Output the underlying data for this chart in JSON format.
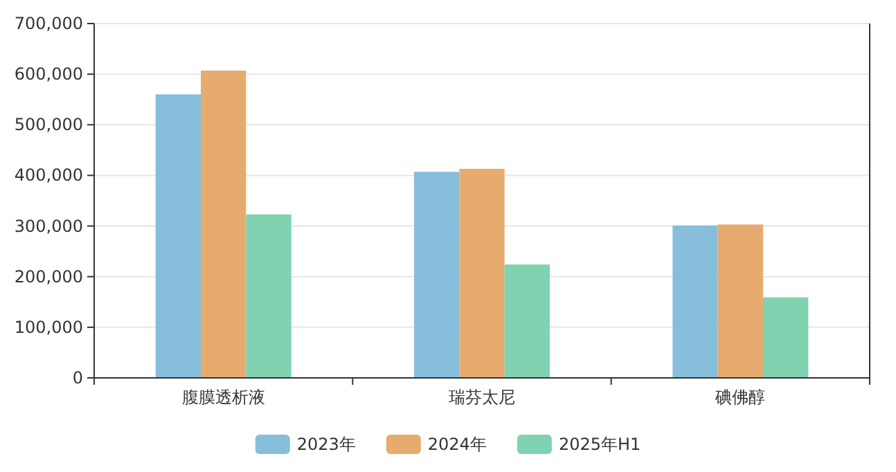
{
  "chart_data": {
    "type": "bar",
    "categories": [
      "腹膜透析液",
      "瑞芬太尼",
      "碘佛醇"
    ],
    "series": [
      {
        "name": "2023年",
        "color": "#86bedb",
        "values": [
          560000,
          407000,
          301000
        ]
      },
      {
        "name": "2024年",
        "color": "#e8ab6f",
        "values": [
          607000,
          413000,
          303000
        ]
      },
      {
        "name": "2025年H1",
        "color": "#80d3b1",
        "values": [
          323000,
          224000,
          159000
        ]
      }
    ],
    "ylim": [
      0,
      700000
    ],
    "yticks": [
      0,
      {
        "value": 100000,
        "label": "100,000"
      },
      {
        "value": 200000,
        "label": "200,000"
      },
      {
        "value": 300000,
        "label": "300,000"
      },
      {
        "value": 400000,
        "label": "400,000"
      },
      {
        "value": 500000,
        "label": "500,000"
      },
      {
        "value": 600000,
        "label": "600,000"
      },
      {
        "value": 700000,
        "label": "700,000"
      }
    ],
    "grid": "y",
    "legend": "bottom"
  }
}
